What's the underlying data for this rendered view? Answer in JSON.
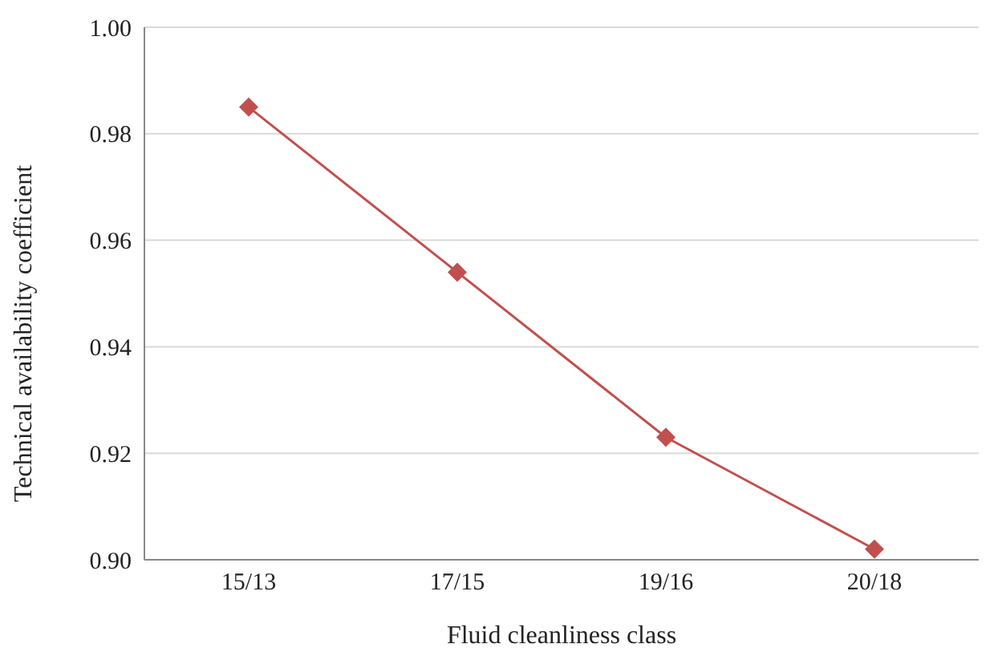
{
  "chart_data": {
    "type": "line",
    "xlabel": "Fluid cleanliness class",
    "ylabel": "Technical availability coefficient",
    "categories": [
      "15/13",
      "17/15",
      "19/16",
      "20/18"
    ],
    "series": [
      {
        "color": "#c0504d",
        "values": [
          0.985,
          0.954,
          0.923,
          0.902
        ]
      }
    ],
    "ylim": [
      0.9,
      1.0
    ],
    "yticks": [
      {
        "value": 0.9,
        "label": "0.90"
      },
      {
        "value": 0.92,
        "label": "0.92"
      },
      {
        "value": 0.94,
        "label": "0.94"
      },
      {
        "value": 0.96,
        "label": "0.96"
      },
      {
        "value": 0.98,
        "label": "0.98"
      },
      {
        "value": 1.0,
        "label": "1.00"
      }
    ],
    "grid": "y",
    "marker": "diamond",
    "legend": false
  }
}
